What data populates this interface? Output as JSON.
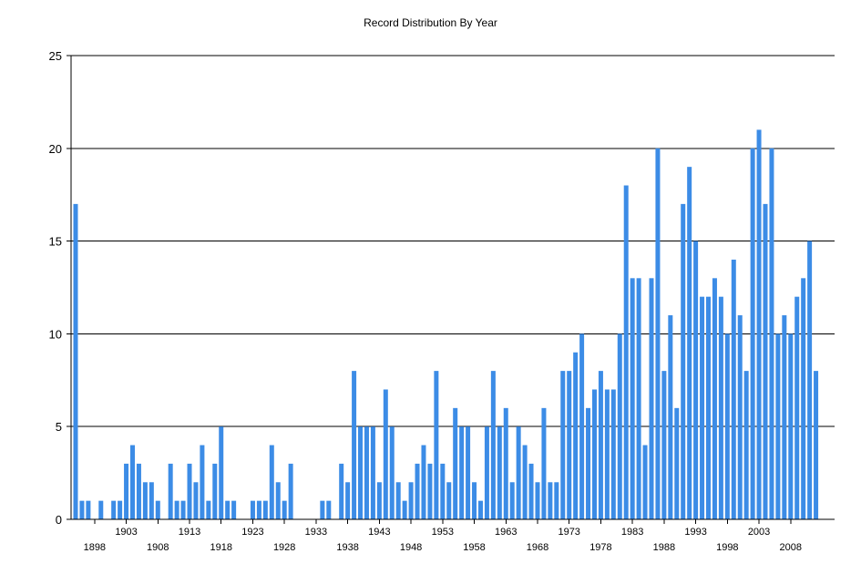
{
  "chart_data": {
    "type": "bar",
    "title": "Record Distribution By Year",
    "xlabel": "",
    "ylabel": "",
    "ylim": [
      0,
      25
    ],
    "yticks": [
      0,
      5,
      10,
      15,
      20,
      25
    ],
    "grid": true,
    "bar_color": "#3c8ce6",
    "x_start": 1895,
    "x_end": 2010,
    "xtick_labels_upper": [
      "1903",
      "1913",
      "1923",
      "1933",
      "1943",
      "1953",
      "1963",
      "1973",
      "1983",
      "1993",
      "2003"
    ],
    "xtick_labels_lower": [
      "1898",
      "1908",
      "1918",
      "1928",
      "1938",
      "1948",
      "1958",
      "1968",
      "1978",
      "1988",
      "1998",
      "2008"
    ],
    "data": [
      {
        "x": 1895,
        "y": 17
      },
      {
        "x": 1896,
        "y": 1
      },
      {
        "x": 1897,
        "y": 1
      },
      {
        "x": 1898,
        "y": 0
      },
      {
        "x": 1899,
        "y": 1
      },
      {
        "x": 1900,
        "y": 0
      },
      {
        "x": 1901,
        "y": 1
      },
      {
        "x": 1902,
        "y": 1
      },
      {
        "x": 1903,
        "y": 3
      },
      {
        "x": 1904,
        "y": 4
      },
      {
        "x": 1905,
        "y": 3
      },
      {
        "x": 1906,
        "y": 2
      },
      {
        "x": 1907,
        "y": 2
      },
      {
        "x": 1908,
        "y": 1
      },
      {
        "x": 1909,
        "y": 0
      },
      {
        "x": 1910,
        "y": 3
      },
      {
        "x": 1911,
        "y": 1
      },
      {
        "x": 1912,
        "y": 1
      },
      {
        "x": 1913,
        "y": 3
      },
      {
        "x": 1914,
        "y": 2
      },
      {
        "x": 1915,
        "y": 4
      },
      {
        "x": 1916,
        "y": 1
      },
      {
        "x": 1917,
        "y": 3
      },
      {
        "x": 1918,
        "y": 5
      },
      {
        "x": 1919,
        "y": 1
      },
      {
        "x": 1920,
        "y": 1
      },
      {
        "x": 1921,
        "y": 0
      },
      {
        "x": 1922,
        "y": 0
      },
      {
        "x": 1923,
        "y": 1
      },
      {
        "x": 1924,
        "y": 1
      },
      {
        "x": 1925,
        "y": 1
      },
      {
        "x": 1926,
        "y": 4
      },
      {
        "x": 1927,
        "y": 2
      },
      {
        "x": 1928,
        "y": 1
      },
      {
        "x": 1929,
        "y": 3
      },
      {
        "x": 1930,
        "y": 0
      },
      {
        "x": 1931,
        "y": 0
      },
      {
        "x": 1932,
        "y": 0
      },
      {
        "x": 1933,
        "y": 0
      },
      {
        "x": 1934,
        "y": 1
      },
      {
        "x": 1935,
        "y": 1
      },
      {
        "x": 1936,
        "y": 0
      },
      {
        "x": 1937,
        "y": 3
      },
      {
        "x": 1938,
        "y": 2
      },
      {
        "x": 1939,
        "y": 8
      },
      {
        "x": 1940,
        "y": 5
      },
      {
        "x": 1941,
        "y": 5
      },
      {
        "x": 1942,
        "y": 5
      },
      {
        "x": 1943,
        "y": 2
      },
      {
        "x": 1944,
        "y": 7
      },
      {
        "x": 1945,
        "y": 5
      },
      {
        "x": 1946,
        "y": 2
      },
      {
        "x": 1947,
        "y": 1
      },
      {
        "x": 1948,
        "y": 2
      },
      {
        "x": 1949,
        "y": 3
      },
      {
        "x": 1950,
        "y": 4
      },
      {
        "x": 1951,
        "y": 3
      },
      {
        "x": 1952,
        "y": 8
      },
      {
        "x": 1953,
        "y": 3
      },
      {
        "x": 1954,
        "y": 2
      },
      {
        "x": 1955,
        "y": 6
      },
      {
        "x": 1956,
        "y": 5
      },
      {
        "x": 1957,
        "y": 5
      },
      {
        "x": 1958,
        "y": 2
      },
      {
        "x": 1959,
        "y": 1
      },
      {
        "x": 1960,
        "y": 5
      },
      {
        "x": 1961,
        "y": 8
      },
      {
        "x": 1962,
        "y": 5
      },
      {
        "x": 1963,
        "y": 6
      },
      {
        "x": 1964,
        "y": 2
      },
      {
        "x": 1965,
        "y": 5
      },
      {
        "x": 1966,
        "y": 4
      },
      {
        "x": 1967,
        "y": 3
      },
      {
        "x": 1968,
        "y": 2
      },
      {
        "x": 1969,
        "y": 6
      },
      {
        "x": 1970,
        "y": 2
      },
      {
        "x": 1971,
        "y": 2
      },
      {
        "x": 1972,
        "y": 8
      },
      {
        "x": 1973,
        "y": 8
      },
      {
        "x": 1974,
        "y": 9
      },
      {
        "x": 1975,
        "y": 10
      },
      {
        "x": 1976,
        "y": 6
      },
      {
        "x": 1977,
        "y": 7
      },
      {
        "x": 1978,
        "y": 8
      },
      {
        "x": 1979,
        "y": 7
      },
      {
        "x": 1980,
        "y": 7
      },
      {
        "x": 1981,
        "y": 10
      },
      {
        "x": 1982,
        "y": 18
      },
      {
        "x": 1983,
        "y": 13
      },
      {
        "x": 1984,
        "y": 13
      },
      {
        "x": 1985,
        "y": 4
      },
      {
        "x": 1986,
        "y": 13
      },
      {
        "x": 1987,
        "y": 20
      },
      {
        "x": 1988,
        "y": 8
      },
      {
        "x": 1989,
        "y": 11
      },
      {
        "x": 1990,
        "y": 6
      },
      {
        "x": 1991,
        "y": 17
      },
      {
        "x": 1992,
        "y": 19
      },
      {
        "x": 1993,
        "y": 15
      },
      {
        "x": 1994,
        "y": 12
      },
      {
        "x": 1995,
        "y": 12
      },
      {
        "x": 1996,
        "y": 13
      },
      {
        "x": 1997,
        "y": 12
      },
      {
        "x": 1998,
        "y": 10
      },
      {
        "x": 1999,
        "y": 14
      },
      {
        "x": 2000,
        "y": 11
      },
      {
        "x": 2001,
        "y": 8
      },
      {
        "x": 2002,
        "y": 20
      },
      {
        "x": 2003,
        "y": 21
      },
      {
        "x": 2004,
        "y": 17
      },
      {
        "x": 2005,
        "y": 20
      },
      {
        "x": 2006,
        "y": 10
      },
      {
        "x": 2007,
        "y": 11
      },
      {
        "x": 2008,
        "y": 10
      },
      {
        "x": 2009,
        "y": 12
      },
      {
        "x": 2010,
        "y": 13
      },
      {
        "x": 2011,
        "y": 15
      },
      {
        "x": 2012,
        "y": 8
      }
    ]
  }
}
